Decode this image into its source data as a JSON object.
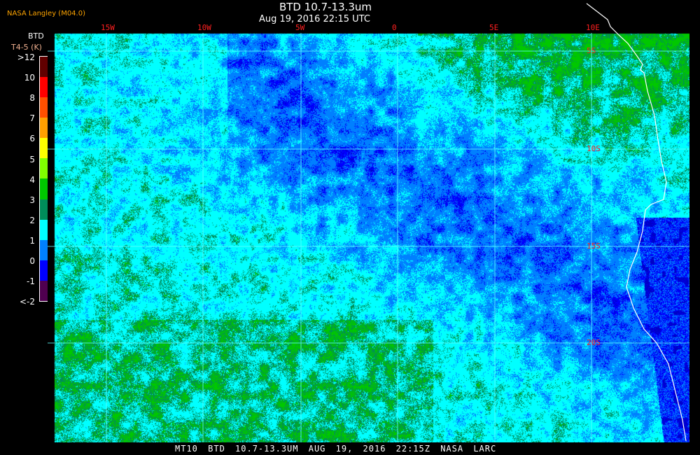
{
  "header": {
    "title": "BTD 10.7-13.3um",
    "subtitle": "Aug 19, 2016 22:15 UTC",
    "organization": "NASA Langley (M04.0)"
  },
  "colorbar": {
    "title": "BTD",
    "unit": "T4-5 (K)",
    "labels": [
      ">12",
      "10",
      "8",
      "7",
      "6",
      "5",
      "4",
      "3",
      "2",
      "1",
      "0",
      "-1",
      "<-2"
    ],
    "colors": [
      "#600000",
      "#ff0000",
      "#ff5000",
      "#ffa000",
      "#ffff00",
      "#80ff00",
      "#00c800",
      "#008c5a",
      "#00ffff",
      "#0080ff",
      "#0000ff",
      "#500050"
    ]
  },
  "grid": {
    "longitudes": [
      "15W",
      "10W",
      "5W",
      "0",
      "5E",
      "10E"
    ],
    "latitudes": [
      "5S",
      "10S",
      "15S",
      "20S"
    ]
  },
  "footer": "MT10  BTD 10.7-13.3UM   AUG 19, 2016 22:15Z   NASA LARC"
}
